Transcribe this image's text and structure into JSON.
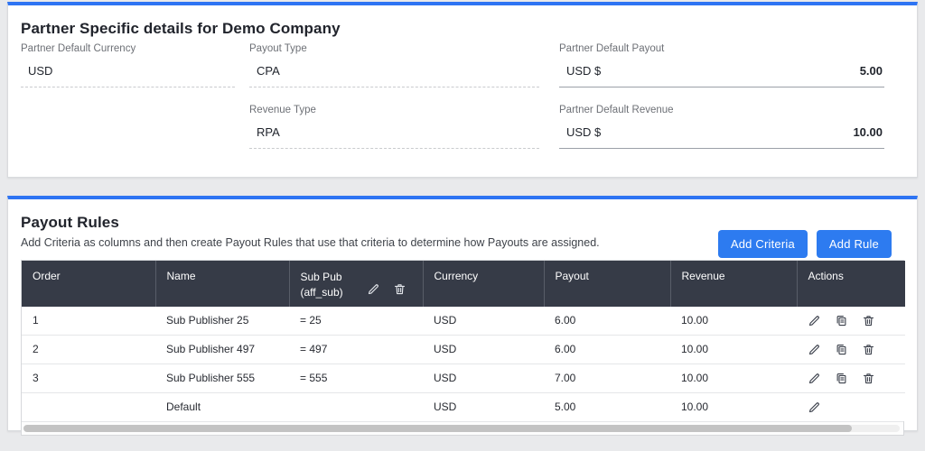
{
  "colors": {
    "accent_blue": "#2e74f3",
    "button_blue": "#2d7bf0",
    "table_header_dark": "#363b47"
  },
  "partner_details": {
    "title": "Partner Specific details for Demo Company",
    "fields": {
      "currency": {
        "label": "Partner Default Currency",
        "value": "USD"
      },
      "payout_type": {
        "label": "Payout Type",
        "value": "CPA"
      },
      "revenue_type": {
        "label": "Revenue Type",
        "value": "RPA"
      },
      "default_payout": {
        "label": "Partner Default Payout",
        "currency": "USD $",
        "value": "5.00"
      },
      "default_revenue": {
        "label": "Partner Default Revenue",
        "currency": "USD $",
        "value": "10.00"
      }
    }
  },
  "payout_rules": {
    "title": "Payout Rules",
    "subtitle": "Add Criteria as columns and then create Payout Rules that use that criteria to determine how Payouts are assigned.",
    "buttons": {
      "add_criteria": "Add Criteria",
      "add_rule": "Add Rule"
    },
    "table": {
      "headers": {
        "order": "Order",
        "name": "Name",
        "sub_pub_line1": "Sub Pub",
        "sub_pub_line2": "(aff_sub)",
        "currency": "Currency",
        "payout": "Payout",
        "revenue": "Revenue",
        "actions": "Actions"
      },
      "rows": [
        {
          "order": "1",
          "name": "Sub Publisher 25",
          "sub_pub": "= 25",
          "currency": "USD",
          "payout": "6.00",
          "revenue": "10.00",
          "actions": [
            "edit",
            "copy",
            "delete"
          ]
        },
        {
          "order": "2",
          "name": "Sub Publisher 497",
          "sub_pub": "= 497",
          "currency": "USD",
          "payout": "6.00",
          "revenue": "10.00",
          "actions": [
            "edit",
            "copy",
            "delete"
          ]
        },
        {
          "order": "3",
          "name": "Sub Publisher 555",
          "sub_pub": "= 555",
          "currency": "USD",
          "payout": "7.00",
          "revenue": "10.00",
          "actions": [
            "edit",
            "copy",
            "delete"
          ]
        },
        {
          "order": "",
          "name": "Default",
          "sub_pub": "",
          "currency": "USD",
          "payout": "5.00",
          "revenue": "10.00",
          "actions": [
            "edit"
          ]
        }
      ]
    }
  }
}
